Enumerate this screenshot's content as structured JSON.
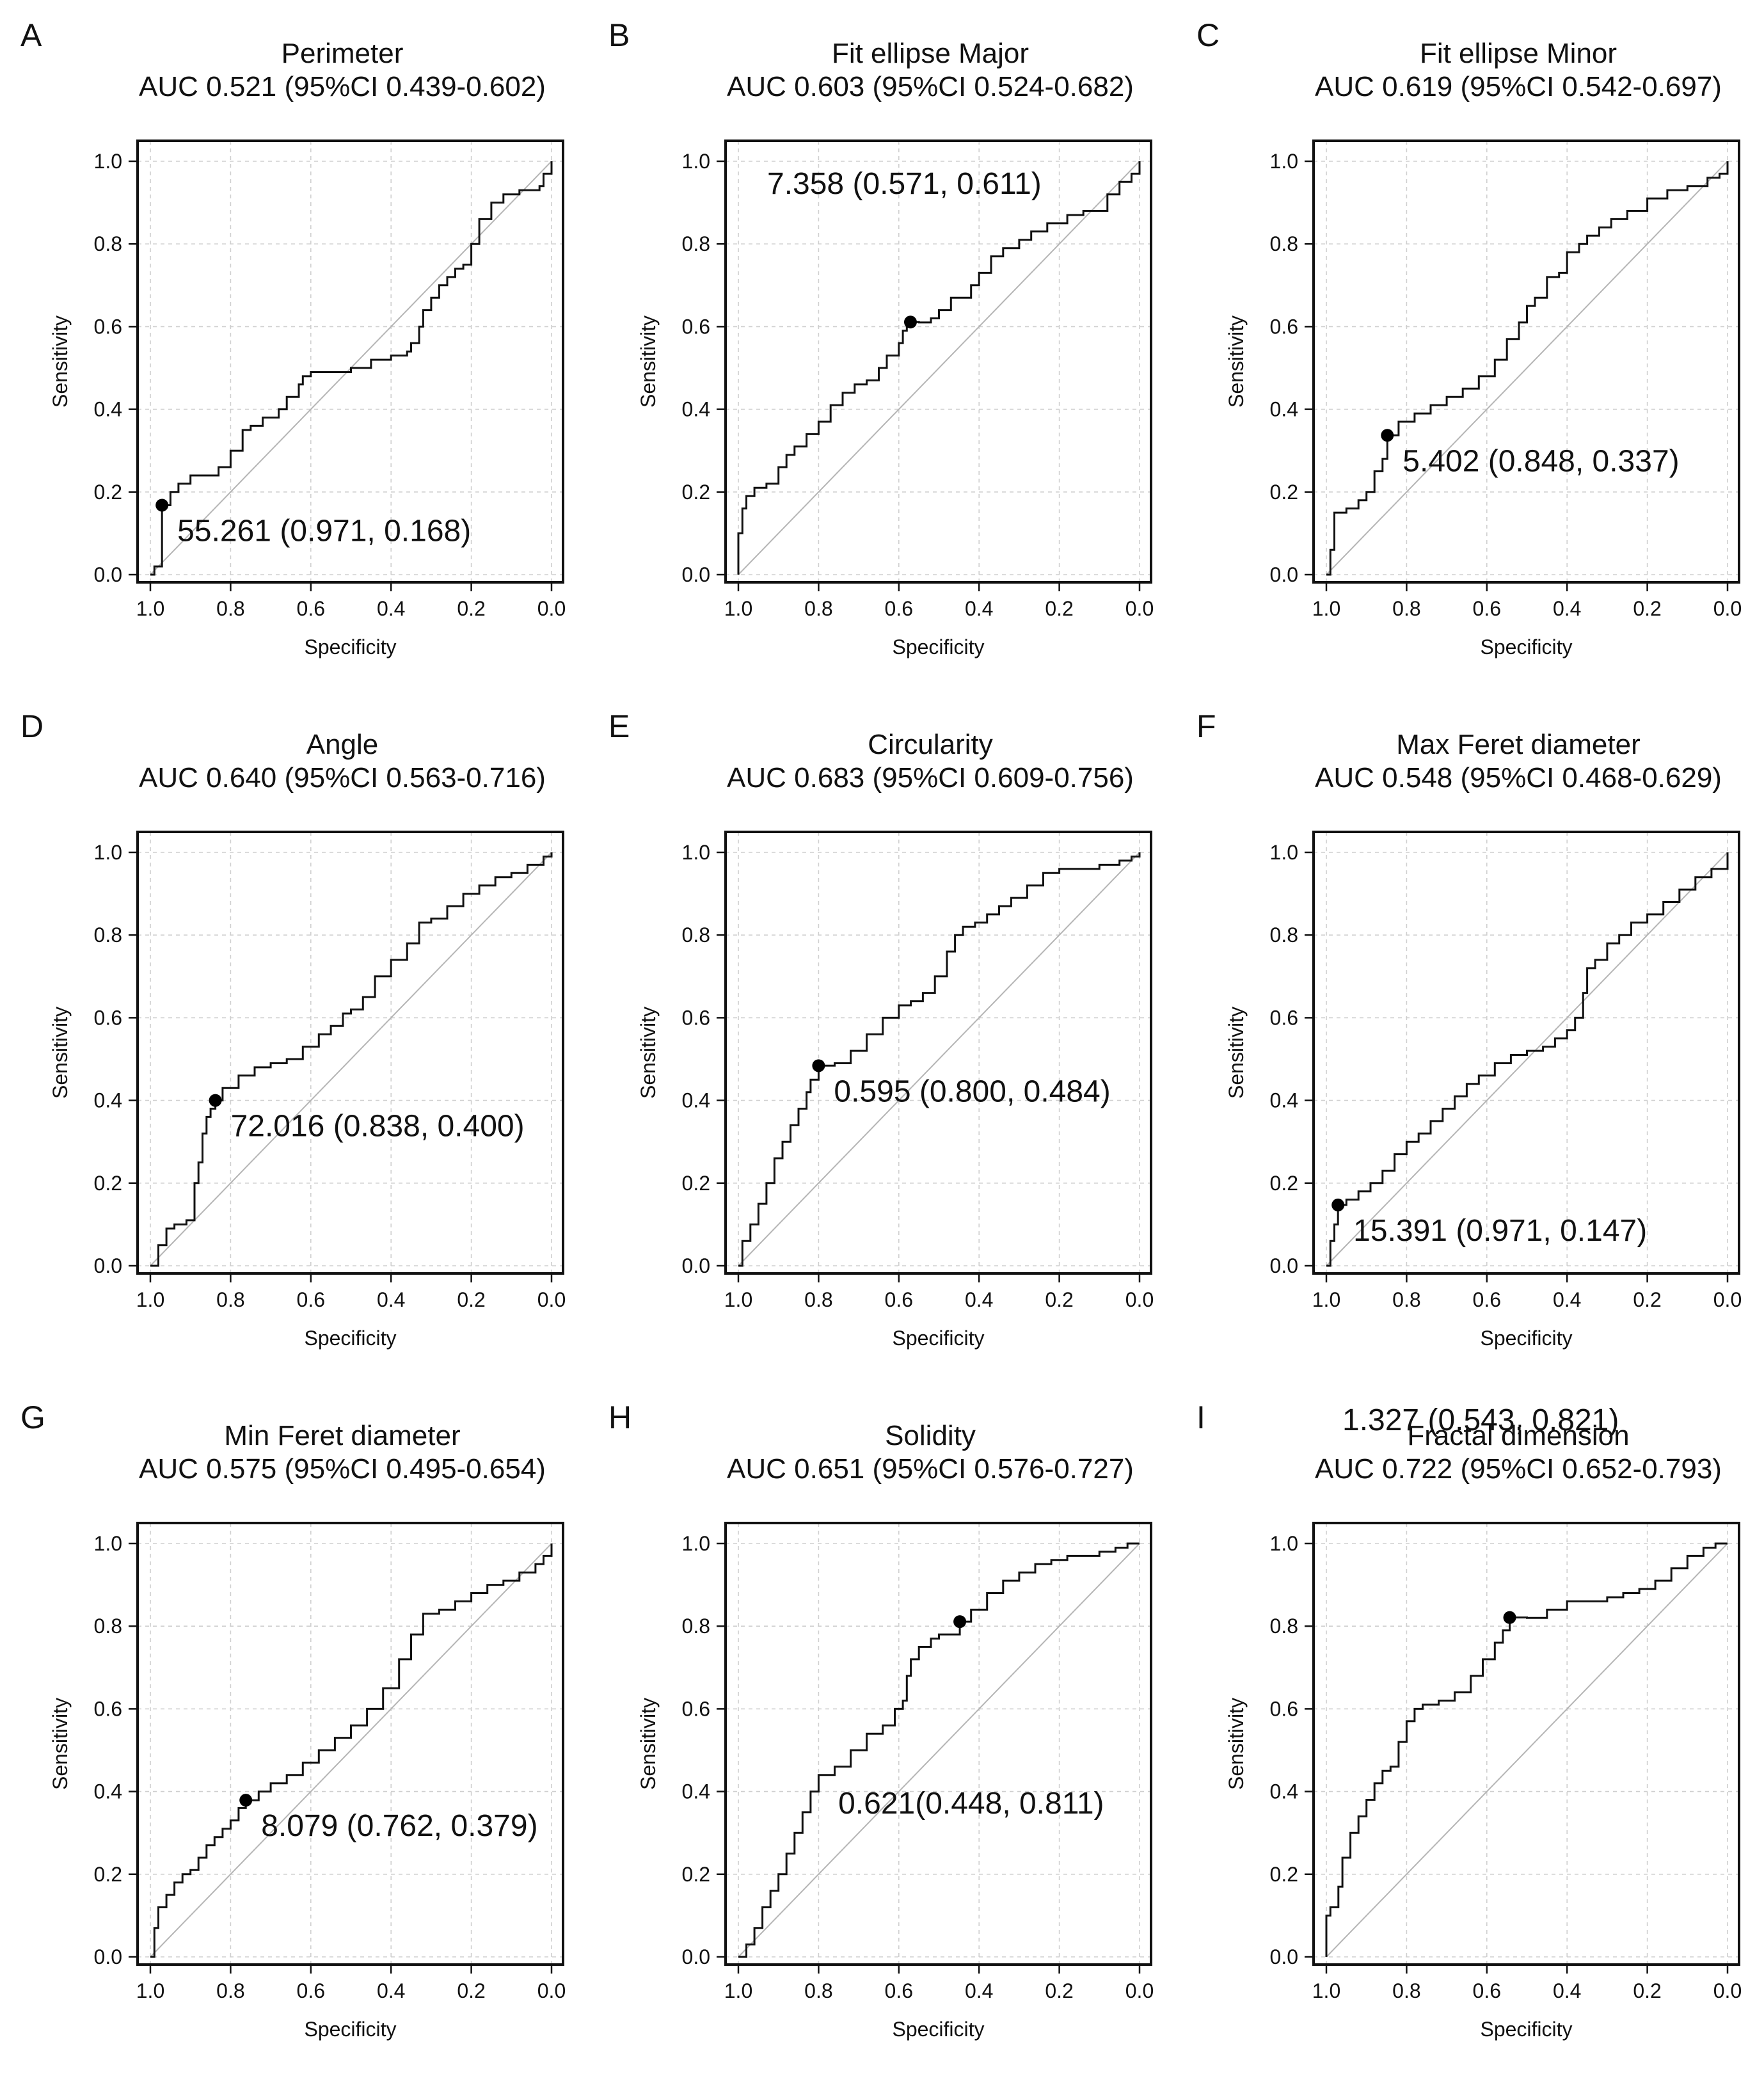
{
  "chart_data": [
    {
      "type": "line",
      "letter": "A",
      "title": "Perimeter",
      "subtitle": "AUC 0.521 (95%CI  0.439-0.602)",
      "xlabel": "Specificity",
      "ylabel": "Sensitivity",
      "xlim": [
        1.0,
        0.0
      ],
      "ylim": [
        0.0,
        1.0
      ],
      "xticks": [
        "1.0",
        "0.8",
        "0.6",
        "0.4",
        "0.2",
        "0.0"
      ],
      "yticks": [
        "0.0",
        "0.2",
        "0.4",
        "0.6",
        "0.8",
        "1.0"
      ],
      "cutoff": {
        "specificity": 0.971,
        "sensitivity": 0.168,
        "label": "55.261 (0.971, 0.168)"
      },
      "series": [
        {
          "name": "ROC",
          "x": [
            1.0,
            0.99,
            0.971,
            0.971,
            0.95,
            0.93,
            0.9,
            0.88,
            0.83,
            0.8,
            0.77,
            0.75,
            0.72,
            0.68,
            0.66,
            0.63,
            0.62,
            0.6,
            0.55,
            0.5,
            0.45,
            0.4,
            0.36,
            0.35,
            0.33,
            0.32,
            0.3,
            0.28,
            0.26,
            0.24,
            0.22,
            0.2,
            0.18,
            0.15,
            0.12,
            0.08,
            0.05,
            0.03,
            0.02,
            0.0
          ],
          "y": [
            0.0,
            0.02,
            0.03,
            0.168,
            0.2,
            0.22,
            0.24,
            0.24,
            0.26,
            0.3,
            0.35,
            0.36,
            0.38,
            0.4,
            0.43,
            0.46,
            0.48,
            0.49,
            0.49,
            0.5,
            0.52,
            0.53,
            0.54,
            0.56,
            0.6,
            0.64,
            0.67,
            0.7,
            0.72,
            0.74,
            0.75,
            0.8,
            0.86,
            0.9,
            0.92,
            0.93,
            0.93,
            0.94,
            0.97,
            1.0
          ]
        }
      ]
    },
    {
      "type": "line",
      "letter": "B",
      "title": "Fit ellipse Major",
      "subtitle": "AUC 0.603 (95%CI 0.524-0.682)",
      "xlabel": "Specificity",
      "ylabel": "Sensitivity",
      "xlim": [
        1.0,
        0.0
      ],
      "ylim": [
        0.0,
        1.0
      ],
      "xticks": [
        "1.0",
        "0.8",
        "0.6",
        "0.4",
        "0.2",
        "0.0"
      ],
      "yticks": [
        "0.0",
        "0.2",
        "0.4",
        "0.6",
        "0.8",
        "1.0"
      ],
      "cutoff": {
        "specificity": 0.571,
        "sensitivity": 0.611,
        "label": "7.358 (0.571, 0.611)"
      },
      "series": [
        {
          "name": "ROC",
          "x": [
            1.0,
            1.0,
            0.99,
            0.98,
            0.96,
            0.93,
            0.9,
            0.88,
            0.86,
            0.83,
            0.8,
            0.77,
            0.74,
            0.71,
            0.68,
            0.65,
            0.63,
            0.6,
            0.59,
            0.58,
            0.571,
            0.55,
            0.52,
            0.5,
            0.47,
            0.44,
            0.42,
            0.4,
            0.37,
            0.34,
            0.3,
            0.27,
            0.23,
            0.18,
            0.14,
            0.08,
            0.05,
            0.02,
            0.0
          ],
          "y": [
            0.0,
            0.1,
            0.16,
            0.19,
            0.21,
            0.22,
            0.26,
            0.29,
            0.31,
            0.34,
            0.37,
            0.41,
            0.44,
            0.46,
            0.47,
            0.5,
            0.53,
            0.56,
            0.59,
            0.6,
            0.611,
            0.61,
            0.62,
            0.64,
            0.67,
            0.67,
            0.7,
            0.73,
            0.77,
            0.79,
            0.81,
            0.83,
            0.85,
            0.87,
            0.88,
            0.92,
            0.95,
            0.97,
            1.0
          ]
        }
      ]
    },
    {
      "type": "line",
      "letter": "C",
      "title": "Fit ellipse Minor",
      "subtitle": "AUC 0.619 (95%CI 0.542-0.697)",
      "xlabel": "Specificity",
      "ylabel": "Sensitivity",
      "xlim": [
        1.0,
        0.0
      ],
      "ylim": [
        0.0,
        1.0
      ],
      "xticks": [
        "1.0",
        "0.8",
        "0.6",
        "0.4",
        "0.2",
        "0.0"
      ],
      "yticks": [
        "0.0",
        "0.2",
        "0.4",
        "0.6",
        "0.8",
        "1.0"
      ],
      "cutoff": {
        "specificity": 0.848,
        "sensitivity": 0.337,
        "label": "5.402 (0.848, 0.337)"
      },
      "series": [
        {
          "name": "ROC",
          "x": [
            1.0,
            0.99,
            0.98,
            0.95,
            0.92,
            0.9,
            0.88,
            0.86,
            0.848,
            0.82,
            0.78,
            0.74,
            0.7,
            0.66,
            0.62,
            0.58,
            0.55,
            0.52,
            0.5,
            0.48,
            0.45,
            0.42,
            0.4,
            0.37,
            0.35,
            0.32,
            0.29,
            0.25,
            0.2,
            0.15,
            0.1,
            0.05,
            0.02,
            0.0
          ],
          "y": [
            0.0,
            0.06,
            0.15,
            0.16,
            0.18,
            0.2,
            0.25,
            0.28,
            0.337,
            0.37,
            0.39,
            0.41,
            0.43,
            0.45,
            0.48,
            0.52,
            0.57,
            0.61,
            0.65,
            0.67,
            0.72,
            0.73,
            0.78,
            0.8,
            0.82,
            0.84,
            0.86,
            0.88,
            0.91,
            0.93,
            0.94,
            0.96,
            0.97,
            1.0
          ]
        }
      ]
    },
    {
      "type": "line",
      "letter": "D",
      "title": "Angle",
      "subtitle": "AUC 0.640 (95%CI 0.563-0.716)",
      "xlabel": "Specificity",
      "ylabel": "Sensitivity",
      "xlim": [
        1.0,
        0.0
      ],
      "ylim": [
        0.0,
        1.0
      ],
      "xticks": [
        "1.0",
        "0.8",
        "0.6",
        "0.4",
        "0.2",
        "0.0"
      ],
      "yticks": [
        "0.0",
        "0.2",
        "0.4",
        "0.6",
        "0.8",
        "1.0"
      ],
      "cutoff": {
        "specificity": 0.838,
        "sensitivity": 0.4,
        "label": "72.016 (0.838, 0.400)"
      },
      "series": [
        {
          "name": "ROC",
          "x": [
            1.0,
            0.98,
            0.96,
            0.94,
            0.91,
            0.89,
            0.88,
            0.87,
            0.86,
            0.85,
            0.838,
            0.82,
            0.78,
            0.74,
            0.7,
            0.66,
            0.62,
            0.58,
            0.55,
            0.52,
            0.5,
            0.47,
            0.44,
            0.4,
            0.36,
            0.33,
            0.3,
            0.26,
            0.22,
            0.18,
            0.14,
            0.1,
            0.06,
            0.02,
            0.0
          ],
          "y": [
            0.0,
            0.05,
            0.09,
            0.1,
            0.11,
            0.2,
            0.25,
            0.32,
            0.36,
            0.38,
            0.4,
            0.43,
            0.46,
            0.48,
            0.49,
            0.5,
            0.53,
            0.56,
            0.58,
            0.61,
            0.62,
            0.65,
            0.7,
            0.74,
            0.78,
            0.83,
            0.84,
            0.87,
            0.9,
            0.92,
            0.94,
            0.95,
            0.97,
            0.99,
            1.0
          ]
        }
      ]
    },
    {
      "type": "line",
      "letter": "E",
      "title": "Circularity",
      "subtitle": "AUC 0.683 (95%CI 0.609-0.756)",
      "xlabel": "Specificity",
      "ylabel": "Sensitivity",
      "xlim": [
        1.0,
        0.0
      ],
      "ylim": [
        0.0,
        1.0
      ],
      "xticks": [
        "1.0",
        "0.8",
        "0.6",
        "0.4",
        "0.2",
        "0.0"
      ],
      "yticks": [
        "0.0",
        "0.2",
        "0.4",
        "0.6",
        "0.8",
        "1.0"
      ],
      "cutoff": {
        "specificity": 0.8,
        "sensitivity": 0.484,
        "label": "0.595 (0.800, 0.484)"
      },
      "series": [
        {
          "name": "ROC",
          "x": [
            1.0,
            0.99,
            0.97,
            0.95,
            0.93,
            0.91,
            0.89,
            0.87,
            0.85,
            0.83,
            0.82,
            0.8,
            0.76,
            0.72,
            0.68,
            0.64,
            0.6,
            0.57,
            0.54,
            0.51,
            0.48,
            0.46,
            0.44,
            0.41,
            0.38,
            0.35,
            0.32,
            0.28,
            0.24,
            0.2,
            0.15,
            0.1,
            0.05,
            0.02,
            0.0
          ],
          "y": [
            0.0,
            0.06,
            0.1,
            0.15,
            0.2,
            0.26,
            0.3,
            0.34,
            0.38,
            0.42,
            0.45,
            0.484,
            0.49,
            0.52,
            0.56,
            0.6,
            0.63,
            0.64,
            0.66,
            0.7,
            0.76,
            0.8,
            0.82,
            0.83,
            0.85,
            0.87,
            0.89,
            0.92,
            0.95,
            0.96,
            0.96,
            0.97,
            0.98,
            0.99,
            1.0
          ]
        }
      ]
    },
    {
      "type": "line",
      "letter": "F",
      "title": "Max Feret diameter",
      "subtitle": "AUC 0.548 (95%CI 0.468-0.629)",
      "xlabel": "Specificity",
      "ylabel": "Sensitivity",
      "xlim": [
        1.0,
        0.0
      ],
      "ylim": [
        0.0,
        1.0
      ],
      "xticks": [
        "1.0",
        "0.8",
        "0.6",
        "0.4",
        "0.2",
        "0.0"
      ],
      "yticks": [
        "0.0",
        "0.2",
        "0.4",
        "0.6",
        "0.8",
        "1.0"
      ],
      "cutoff": {
        "specificity": 0.971,
        "sensitivity": 0.147,
        "label": "15.391 (0.971, 0.147)"
      },
      "series": [
        {
          "name": "ROC",
          "x": [
            1.0,
            0.99,
            0.98,
            0.971,
            0.95,
            0.92,
            0.89,
            0.86,
            0.83,
            0.8,
            0.77,
            0.74,
            0.71,
            0.68,
            0.65,
            0.62,
            0.58,
            0.54,
            0.5,
            0.46,
            0.43,
            0.4,
            0.38,
            0.36,
            0.35,
            0.33,
            0.3,
            0.27,
            0.24,
            0.2,
            0.16,
            0.12,
            0.08,
            0.04,
            0.0
          ],
          "y": [
            0.0,
            0.06,
            0.1,
            0.147,
            0.16,
            0.18,
            0.2,
            0.23,
            0.27,
            0.3,
            0.32,
            0.35,
            0.38,
            0.41,
            0.44,
            0.46,
            0.49,
            0.51,
            0.52,
            0.53,
            0.55,
            0.57,
            0.6,
            0.66,
            0.72,
            0.74,
            0.78,
            0.8,
            0.83,
            0.85,
            0.88,
            0.91,
            0.94,
            0.96,
            1.0
          ]
        }
      ]
    },
    {
      "type": "line",
      "letter": "G",
      "title": "Min Feret diameter",
      "subtitle": "AUC 0.575 (95%CI 0.495-0.654)",
      "xlabel": "Specificity",
      "ylabel": "Sensitivity",
      "xlim": [
        1.0,
        0.0
      ],
      "ylim": [
        0.0,
        1.0
      ],
      "xticks": [
        "1.0",
        "0.8",
        "0.6",
        "0.4",
        "0.2",
        "0.0"
      ],
      "yticks": [
        "0.0",
        "0.2",
        "0.4",
        "0.6",
        "0.8",
        "1.0"
      ],
      "cutoff": {
        "specificity": 0.762,
        "sensitivity": 0.379,
        "label": "8.079 (0.762, 0.379)"
      },
      "series": [
        {
          "name": "ROC",
          "x": [
            1.0,
            0.99,
            0.98,
            0.96,
            0.94,
            0.92,
            0.9,
            0.88,
            0.86,
            0.84,
            0.82,
            0.8,
            0.78,
            0.762,
            0.73,
            0.7,
            0.66,
            0.62,
            0.58,
            0.54,
            0.5,
            0.46,
            0.42,
            0.38,
            0.35,
            0.32,
            0.28,
            0.24,
            0.2,
            0.16,
            0.12,
            0.08,
            0.04,
            0.02,
            0.0
          ],
          "y": [
            0.0,
            0.07,
            0.12,
            0.15,
            0.18,
            0.2,
            0.21,
            0.24,
            0.27,
            0.29,
            0.31,
            0.33,
            0.36,
            0.379,
            0.4,
            0.42,
            0.44,
            0.47,
            0.5,
            0.53,
            0.56,
            0.6,
            0.65,
            0.72,
            0.78,
            0.83,
            0.84,
            0.86,
            0.88,
            0.9,
            0.91,
            0.93,
            0.95,
            0.97,
            1.0
          ]
        }
      ]
    },
    {
      "type": "line",
      "letter": "H",
      "title": "Solidity",
      "subtitle": "AUC 0.651 (95%CI 0.576-0.727)",
      "xlabel": "Specificity",
      "ylabel": "Sensitivity",
      "xlim": [
        1.0,
        0.0
      ],
      "ylim": [
        0.0,
        1.0
      ],
      "xticks": [
        "1.0",
        "0.8",
        "0.6",
        "0.4",
        "0.2",
        "0.0"
      ],
      "yticks": [
        "0.0",
        "0.2",
        "0.4",
        "0.6",
        "0.8",
        "1.0"
      ],
      "cutoff": {
        "specificity": 0.448,
        "sensitivity": 0.811,
        "label": "0.621(0.448, 0.811)"
      },
      "series": [
        {
          "name": "ROC",
          "x": [
            1.0,
            0.98,
            0.96,
            0.94,
            0.92,
            0.9,
            0.88,
            0.86,
            0.84,
            0.82,
            0.8,
            0.76,
            0.72,
            0.68,
            0.64,
            0.61,
            0.59,
            0.58,
            0.57,
            0.55,
            0.52,
            0.5,
            0.448,
            0.42,
            0.38,
            0.34,
            0.3,
            0.26,
            0.22,
            0.18,
            0.14,
            0.1,
            0.06,
            0.03,
            0.0
          ],
          "y": [
            0.0,
            0.03,
            0.07,
            0.12,
            0.16,
            0.2,
            0.25,
            0.3,
            0.35,
            0.4,
            0.44,
            0.46,
            0.5,
            0.54,
            0.56,
            0.6,
            0.62,
            0.68,
            0.72,
            0.75,
            0.77,
            0.78,
            0.811,
            0.84,
            0.88,
            0.91,
            0.93,
            0.95,
            0.96,
            0.97,
            0.97,
            0.98,
            0.99,
            1.0,
            1.0
          ]
        }
      ]
    },
    {
      "type": "line",
      "letter": "I",
      "title": "Fractal dimension",
      "subtitle": "AUC 0.722 (95%CI 0.652-0.793)",
      "xlabel": "Specificity",
      "ylabel": "Sensitivity",
      "xlim": [
        1.0,
        0.0
      ],
      "ylim": [
        0.0,
        1.0
      ],
      "xticks": [
        "1.0",
        "0.8",
        "0.6",
        "0.4",
        "0.2",
        "0.0"
      ],
      "yticks": [
        "0.0",
        "0.2",
        "0.4",
        "0.6",
        "0.8",
        "1.0"
      ],
      "cutoff": {
        "specificity": 0.543,
        "sensitivity": 0.821,
        "label": "1.327 (0.543, 0.821)"
      },
      "series": [
        {
          "name": "ROC",
          "x": [
            1.0,
            1.0,
            0.99,
            0.97,
            0.96,
            0.94,
            0.92,
            0.9,
            0.88,
            0.86,
            0.84,
            0.82,
            0.8,
            0.78,
            0.76,
            0.72,
            0.68,
            0.64,
            0.61,
            0.58,
            0.56,
            0.543,
            0.5,
            0.45,
            0.4,
            0.35,
            0.3,
            0.26,
            0.22,
            0.18,
            0.14,
            0.1,
            0.06,
            0.03,
            0.0
          ],
          "y": [
            0.0,
            0.1,
            0.12,
            0.17,
            0.24,
            0.3,
            0.34,
            0.38,
            0.42,
            0.45,
            0.46,
            0.52,
            0.57,
            0.6,
            0.61,
            0.62,
            0.64,
            0.68,
            0.72,
            0.76,
            0.79,
            0.821,
            0.82,
            0.84,
            0.86,
            0.86,
            0.87,
            0.88,
            0.89,
            0.91,
            0.94,
            0.97,
            0.99,
            1.0,
            1.0
          ]
        }
      ]
    }
  ]
}
